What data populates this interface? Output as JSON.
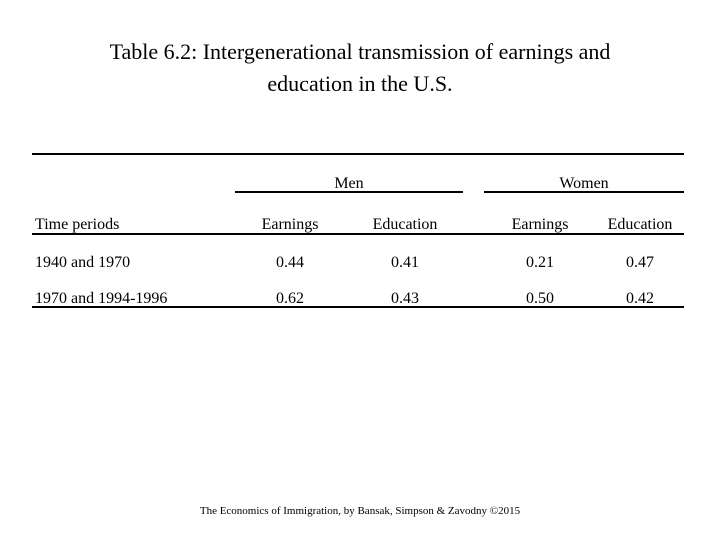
{
  "title": {
    "line1": "Table 6.2: Intergenerational transmission of earnings and",
    "line2": "education in the U.S."
  },
  "table": {
    "group_headers": [
      "Men",
      "Women"
    ],
    "row_header": "Time periods",
    "column_headers": [
      "Earnings",
      "Education",
      "Earnings",
      "Education"
    ],
    "rows": [
      {
        "label": "1940 and 1970",
        "values": [
          "0.44",
          "0.41",
          "0.21",
          "0.47"
        ]
      },
      {
        "label": "1970 and 1994-1996",
        "values": [
          "0.62",
          "0.43",
          "0.50",
          "0.42"
        ]
      }
    ]
  },
  "footer": "The Economics of Immigration, by Bansak, Simpson & Zavodny ©2015"
}
